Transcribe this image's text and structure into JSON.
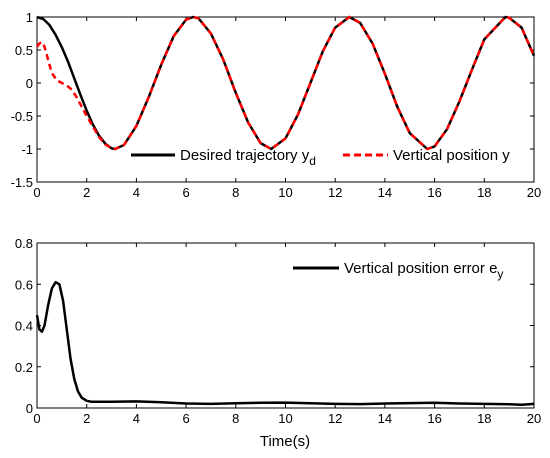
{
  "chart_data": [
    {
      "type": "line",
      "title": "",
      "xlabel": "",
      "ylabel": "",
      "xlim": [
        0,
        20
      ],
      "ylim": [
        -1.5,
        1
      ],
      "xticks": [
        "0",
        "2",
        "4",
        "6",
        "8",
        "10",
        "12",
        "14",
        "16",
        "18",
        "20"
      ],
      "yticks": [
        "1",
        "0.5",
        "0",
        "-0.5",
        "-1",
        "-1.5"
      ],
      "grid": false,
      "legend_position": "bottom-right inside, single row",
      "series": [
        {
          "name": "Desired trajectory y",
          "name_subscript": "d",
          "color": "#000000",
          "style": "solid",
          "x": [
            0,
            0.25,
            0.5,
            0.75,
            1,
            1.25,
            1.5,
            1.75,
            2,
            2.25,
            2.5,
            2.75,
            3,
            3.142,
            3.5,
            4,
            4.5,
            5,
            5.5,
            6,
            6.283,
            6.5,
            7,
            7.5,
            8,
            8.5,
            9,
            9.425,
            10,
            10.5,
            11,
            11.5,
            12,
            12.566,
            13,
            13.5,
            14,
            14.5,
            15,
            15.708,
            16,
            16.5,
            17,
            17.5,
            18,
            18.85,
            19,
            19.5,
            20
          ],
          "y": [
            1,
            0.97,
            0.88,
            0.73,
            0.54,
            0.32,
            0.07,
            -0.18,
            -0.42,
            -0.63,
            -0.8,
            -0.92,
            -0.99,
            -1,
            -0.94,
            -0.65,
            -0.21,
            0.28,
            0.71,
            0.96,
            1,
            0.98,
            0.75,
            0.35,
            -0.15,
            -0.6,
            -0.91,
            -1,
            -0.84,
            -0.48,
            0.0,
            0.48,
            0.84,
            1,
            0.91,
            0.6,
            0.14,
            -0.36,
            -0.76,
            -1,
            -0.96,
            -0.7,
            -0.28,
            0.2,
            0.66,
            1,
            0.99,
            0.84,
            0.41
          ]
        },
        {
          "name": "Vertical position y",
          "color": "#ff0000",
          "style": "dashed",
          "x": [
            0,
            0.1,
            0.2,
            0.3,
            0.4,
            0.5,
            0.6,
            0.8,
            1.0,
            1.2,
            1.4,
            1.6,
            1.8,
            2,
            2.25,
            2.5,
            2.75,
            3,
            3.142,
            3.5,
            4,
            4.5,
            5,
            5.5,
            6,
            6.283,
            6.5,
            7,
            7.5,
            8,
            8.5,
            9,
            9.425,
            10,
            10.5,
            11,
            11.5,
            12,
            12.566,
            13,
            13.5,
            14,
            14.5,
            15,
            15.708,
            16,
            16.5,
            17,
            17.5,
            18,
            18.85,
            19,
            19.5,
            20
          ],
          "y": [
            0.55,
            0.6,
            0.62,
            0.55,
            0.42,
            0.28,
            0.15,
            0.04,
            0.0,
            -0.04,
            -0.1,
            -0.22,
            -0.36,
            -0.5,
            -0.66,
            -0.82,
            -0.93,
            -0.99,
            -1,
            -0.94,
            -0.65,
            -0.21,
            0.28,
            0.71,
            0.96,
            1,
            0.98,
            0.75,
            0.35,
            -0.15,
            -0.6,
            -0.91,
            -1,
            -0.84,
            -0.48,
            0.0,
            0.48,
            0.84,
            1,
            0.91,
            0.6,
            0.14,
            -0.36,
            -0.76,
            -1,
            -0.96,
            -0.7,
            -0.28,
            0.2,
            0.66,
            1,
            0.99,
            0.84,
            0.41
          ]
        }
      ]
    },
    {
      "type": "line",
      "title": "",
      "xlabel": "Time(s)",
      "ylabel": "",
      "xlim": [
        0,
        20
      ],
      "ylim": [
        0,
        0.8
      ],
      "xticks": [
        "0",
        "2",
        "4",
        "6",
        "8",
        "10",
        "12",
        "14",
        "16",
        "18",
        "20"
      ],
      "yticks": [
        "0.8",
        "0.6",
        "0.4",
        "0.2",
        "0"
      ],
      "grid": false,
      "legend_position": "top-right inside",
      "series": [
        {
          "name": "Vertical position error e",
          "name_subscript": "y",
          "color": "#000000",
          "style": "solid",
          "x": [
            0,
            0.1,
            0.2,
            0.3,
            0.45,
            0.6,
            0.75,
            0.9,
            1.05,
            1.2,
            1.35,
            1.5,
            1.65,
            1.8,
            2.0,
            2.2,
            2.5,
            3,
            4,
            5,
            6,
            7,
            8,
            9,
            10,
            11,
            12,
            13,
            14,
            15,
            16,
            17,
            18,
            19,
            19.5,
            20
          ],
          "y": [
            0.45,
            0.38,
            0.37,
            0.4,
            0.5,
            0.58,
            0.61,
            0.6,
            0.52,
            0.38,
            0.24,
            0.14,
            0.08,
            0.05,
            0.035,
            0.03,
            0.03,
            0.03,
            0.032,
            0.028,
            0.022,
            0.02,
            0.023,
            0.025,
            0.026,
            0.023,
            0.02,
            0.019,
            0.022,
            0.024,
            0.025,
            0.022,
            0.02,
            0.018,
            0.016,
            0.02
          ]
        }
      ]
    }
  ]
}
